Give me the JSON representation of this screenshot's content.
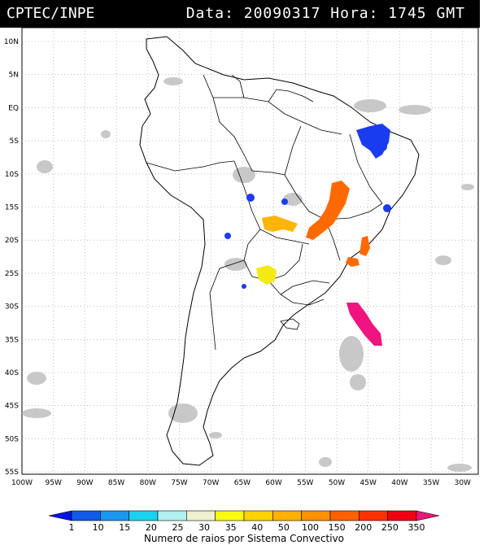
{
  "header": {
    "left": "CPTEC/INPE",
    "right": "Data: 20090317 Hora: 1745 GMT"
  },
  "map": {
    "lat_labels": [
      "10N",
      "5N",
      "EQ",
      "5S",
      "10S",
      "15S",
      "20S",
      "25S",
      "30S",
      "35S",
      "40S",
      "45S",
      "50S",
      "55S"
    ],
    "lon_labels": [
      "100W",
      "95W",
      "90W",
      "85W",
      "80W",
      "75W",
      "70W",
      "65W",
      "60W",
      "55W",
      "50W",
      "45W",
      "40W",
      "35W",
      "30W"
    ],
    "colors": {
      "cloud": "#c8c8c8",
      "border": "#000000",
      "grid": "#9a9a9a"
    },
    "systems": [
      {
        "name": "system-ne-brazil",
        "color": "#1a3cf0"
      },
      {
        "name": "system-central-brazil",
        "color": "#ff6a00"
      },
      {
        "name": "system-mato-grosso",
        "color": "#ffb400"
      },
      {
        "name": "system-paraguay",
        "color": "#f2ea10"
      },
      {
        "name": "system-atlantic",
        "color": "#f01480"
      }
    ]
  },
  "colorbar": {
    "labels": [
      "1",
      "10",
      "15",
      "20",
      "25",
      "30",
      "35",
      "40",
      "50",
      "100",
      "150",
      "200",
      "250",
      "350"
    ],
    "colors": [
      "#0a14e6",
      "#0f5ae6",
      "#1a96f0",
      "#19d2f0",
      "#b0f0f0",
      "#f0f0d0",
      "#fafa10",
      "#ffd200",
      "#ffb000",
      "#ff9000",
      "#ff6000",
      "#ff3000",
      "#f00010",
      "#f0147a"
    ],
    "title": "Numero de raios por Sistema Convectivo"
  }
}
